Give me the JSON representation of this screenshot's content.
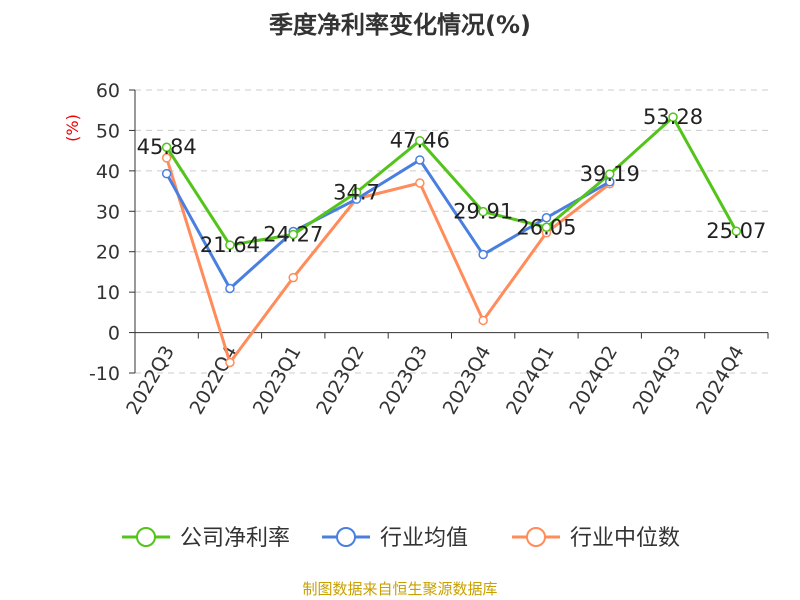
{
  "chart_data": {
    "type": "line",
    "title": "季度净利率变化情况(%)",
    "ylabel": "(%)",
    "ylim": [
      -10,
      60
    ],
    "yticks": [
      -10,
      0,
      10,
      20,
      30,
      40,
      50,
      60
    ],
    "grid": true,
    "legend_position": "bottom",
    "categories": [
      "2022Q3",
      "2022Q4",
      "2023Q1",
      "2023Q2",
      "2023Q3",
      "2023Q4",
      "2024Q1",
      "2024Q2",
      "2024Q3",
      "2024Q4"
    ],
    "series": [
      {
        "name": "公司净利率",
        "color": "#52c41a",
        "labels": true,
        "values": [
          45.84,
          21.64,
          24.27,
          34.7,
          47.46,
          29.91,
          26.05,
          39.19,
          53.28,
          25.07
        ]
      },
      {
        "name": "行业均值",
        "color": "#4a7fe0",
        "labels": false,
        "values": [
          39.3,
          10.9,
          25.0,
          33.0,
          42.7,
          19.3,
          28.4,
          37.3,
          null,
          null
        ]
      },
      {
        "name": "行业中位数",
        "color": "#ff8c5a",
        "labels": false,
        "values": [
          43.2,
          -7.4,
          13.6,
          33.1,
          37.0,
          3.0,
          24.7,
          36.8,
          null,
          null
        ]
      }
    ]
  },
  "source": "制图数据来自恒生聚源数据库"
}
